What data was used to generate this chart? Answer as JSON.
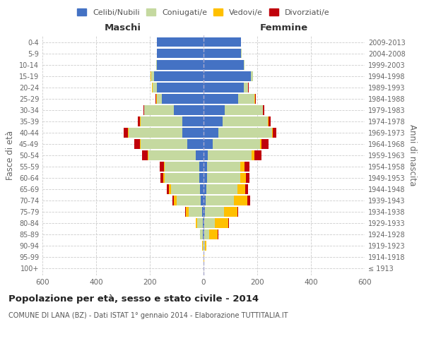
{
  "age_groups": [
    "100+",
    "95-99",
    "90-94",
    "85-89",
    "80-84",
    "75-79",
    "70-74",
    "65-69",
    "60-64",
    "55-59",
    "50-54",
    "45-49",
    "40-44",
    "35-39",
    "30-34",
    "25-29",
    "20-24",
    "15-19",
    "10-14",
    "5-9",
    "0-4"
  ],
  "birth_years": [
    "≤ 1913",
    "1914-1918",
    "1919-1923",
    "1924-1928",
    "1929-1933",
    "1934-1938",
    "1939-1943",
    "1944-1948",
    "1949-1953",
    "1954-1958",
    "1959-1963",
    "1964-1968",
    "1969-1973",
    "1974-1978",
    "1979-1983",
    "1984-1988",
    "1989-1993",
    "1994-1998",
    "1999-2003",
    "2004-2008",
    "2009-2013"
  ],
  "males": {
    "celibi": [
      0,
      0,
      0,
      2,
      3,
      5,
      10,
      12,
      15,
      15,
      30,
      60,
      80,
      80,
      110,
      155,
      175,
      185,
      175,
      175,
      175
    ],
    "coniugati": [
      0,
      1,
      3,
      10,
      20,
      50,
      90,
      110,
      130,
      130,
      175,
      175,
      200,
      155,
      110,
      20,
      15,
      10,
      2,
      0,
      0
    ],
    "vedovi": [
      0,
      0,
      1,
      2,
      5,
      10,
      10,
      8,
      5,
      3,
      3,
      2,
      2,
      1,
      1,
      2,
      2,
      2,
      0,
      0,
      0
    ],
    "divorziati": [
      0,
      0,
      0,
      0,
      1,
      3,
      5,
      8,
      10,
      15,
      20,
      22,
      15,
      8,
      3,
      2,
      1,
      0,
      0,
      0,
      0
    ]
  },
  "females": {
    "nubili": [
      0,
      0,
      0,
      2,
      3,
      5,
      8,
      10,
      12,
      12,
      15,
      35,
      55,
      70,
      80,
      130,
      150,
      175,
      150,
      140,
      140
    ],
    "coniugate": [
      0,
      1,
      5,
      20,
      40,
      70,
      105,
      115,
      125,
      125,
      165,
      175,
      200,
      170,
      140,
      60,
      15,
      10,
      2,
      2,
      0
    ],
    "vedove": [
      0,
      1,
      5,
      30,
      50,
      50,
      50,
      30,
      20,
      15,
      10,
      5,
      3,
      3,
      2,
      2,
      2,
      0,
      0,
      0,
      0
    ],
    "divorziate": [
      0,
      0,
      0,
      2,
      2,
      5,
      10,
      12,
      15,
      20,
      25,
      28,
      12,
      8,
      3,
      2,
      1,
      0,
      0,
      0,
      0
    ]
  },
  "colors": {
    "celibi": "#4472c4",
    "coniugati": "#c5d9a0",
    "vedovi": "#ffc000",
    "divorziati": "#c0000b"
  },
  "xlim": 600,
  "title": "Popolazione per età, sesso e stato civile - 2014",
  "subtitle": "COMUNE DI LANA (BZ) - Dati ISTAT 1° gennaio 2014 - Elaborazione TUTTITALIA.IT",
  "ylabel_left": "Fasce di età",
  "ylabel_right": "Anni di nascita",
  "xlabel_maschi": "Maschi",
  "xlabel_femmine": "Femmine",
  "legend_labels": [
    "Celibi/Nubili",
    "Coniugati/e",
    "Vedovi/e",
    "Divorziati/e"
  ],
  "bg_color": "#ffffff",
  "grid_color": "#cccccc"
}
